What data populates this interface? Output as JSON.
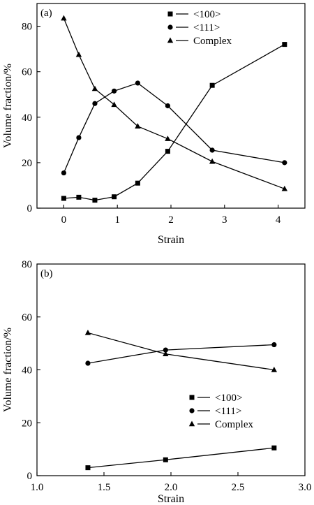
{
  "chart_data": [
    {
      "type": "line",
      "panel_label": "(a)",
      "xlabel": "Strain",
      "ylabel": "Volume fraction/%",
      "xlim": [
        -0.5,
        4.5
      ],
      "ylim": [
        0,
        90
      ],
      "x_ticks": [
        0,
        1,
        2,
        3,
        4
      ],
      "x_tick_labels": [
        "0",
        "1",
        "2",
        "3",
        "4"
      ],
      "y_ticks": [
        0,
        20,
        40,
        60,
        80
      ],
      "y_tick_labels": [
        "0",
        "20",
        "40",
        "60",
        "80"
      ],
      "legend_position": "top-right",
      "grid": false,
      "series": [
        {
          "name": "<100>",
          "marker": "square",
          "x": [
            0,
            0.28,
            0.58,
            0.94,
            1.38,
            1.94,
            2.77,
            4.12
          ],
          "y": [
            4.3,
            4.8,
            3.5,
            5.0,
            11.0,
            25.0,
            54.0,
            72.0
          ]
        },
        {
          "name": "<111>",
          "marker": "circle",
          "x": [
            0,
            0.28,
            0.58,
            0.94,
            1.38,
            1.94,
            2.77,
            4.12
          ],
          "y": [
            15.5,
            31.0,
            46.0,
            51.5,
            55.0,
            45.0,
            25.5,
            20.0
          ]
        },
        {
          "name": "Complex",
          "marker": "triangle",
          "x": [
            0,
            0.28,
            0.58,
            0.94,
            1.38,
            1.94,
            2.77,
            4.12
          ],
          "y": [
            83.5,
            67.5,
            52.5,
            45.5,
            36.0,
            30.5,
            20.5,
            8.5
          ]
        }
      ]
    },
    {
      "type": "line",
      "panel_label": "(b)",
      "xlabel": "Strain",
      "ylabel": "Volume fraction/%",
      "xlim": [
        1.0,
        3.0
      ],
      "ylim": [
        0,
        80
      ],
      "x_ticks": [
        1.0,
        1.5,
        2.0,
        2.5,
        3.0
      ],
      "x_tick_labels": [
        "1.0",
        "1.5",
        "2.0",
        "2.5",
        "3.0"
      ],
      "y_ticks": [
        0,
        20,
        40,
        60,
        80
      ],
      "y_tick_labels": [
        "0",
        "20",
        "40",
        "60",
        "80"
      ],
      "legend_position": "bottom-right",
      "grid": false,
      "series": [
        {
          "name": "<100>",
          "marker": "square",
          "x": [
            1.38,
            1.96,
            2.77
          ],
          "y": [
            3.0,
            6.0,
            10.5
          ]
        },
        {
          "name": "<111>",
          "marker": "circle",
          "x": [
            1.38,
            1.96,
            2.77
          ],
          "y": [
            42.5,
            47.5,
            49.5
          ]
        },
        {
          "name": "Complex",
          "marker": "triangle",
          "x": [
            1.38,
            1.96,
            2.77
          ],
          "y": [
            54.0,
            46.0,
            40.0
          ]
        }
      ]
    }
  ]
}
